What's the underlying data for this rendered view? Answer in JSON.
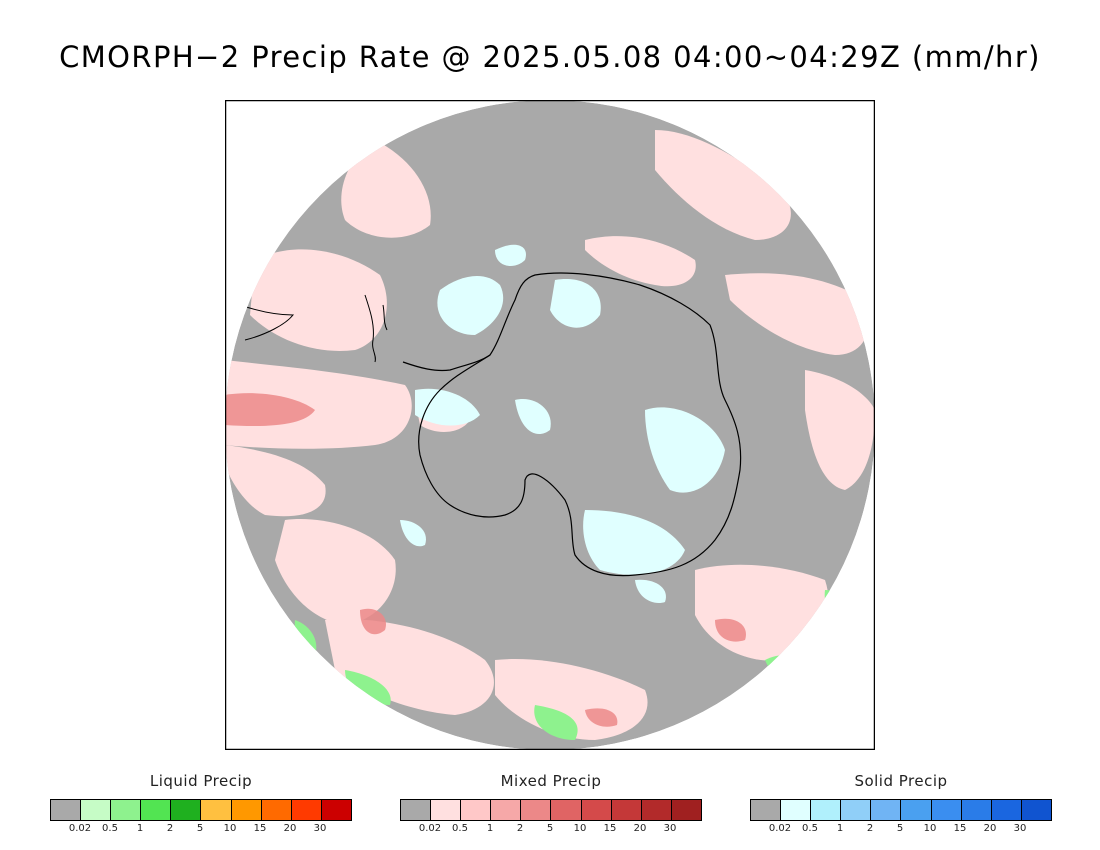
{
  "title": "CMORPH−2 Precip Rate @ 2025.05.08 04:00~04:29Z (mm/hr)",
  "map": {
    "projection": "south-polar-stereographic",
    "background_color": "#a9a9a9",
    "coastline_color": "#000000"
  },
  "legends": [
    {
      "id": "liquid",
      "title": "Liquid Precip",
      "colors": [
        "#a9a9a9",
        "#c6fcc6",
        "#8ef28e",
        "#52e452",
        "#1fb01f",
        "#ffc040",
        "#ff9800",
        "#ff6a00",
        "#ff3a00",
        "#cc0000"
      ],
      "ticks": [
        "0.02",
        "0.5",
        "1",
        "2",
        "5",
        "10",
        "15",
        "20",
        "30"
      ]
    },
    {
      "id": "mixed",
      "title": "Mixed Precip",
      "colors": [
        "#a9a9a9",
        "#ffe0e0",
        "#ffc8c8",
        "#f6a8a8",
        "#ec8888",
        "#e06464",
        "#d44a4a",
        "#c43838",
        "#b22a2a",
        "#a02020"
      ],
      "ticks": [
        "0.02",
        "0.5",
        "1",
        "2",
        "5",
        "10",
        "15",
        "20",
        "30"
      ]
    },
    {
      "id": "solid",
      "title": "Solid Precip",
      "colors": [
        "#a9a9a9",
        "#e0ffff",
        "#b0f0fc",
        "#90cff8",
        "#70b4f4",
        "#4aa0f0",
        "#3a8ef0",
        "#2a7ce8",
        "#1a66e0",
        "#1054d0"
      ],
      "ticks": [
        "0.02",
        "0.5",
        "1",
        "2",
        "5",
        "10",
        "15",
        "20",
        "30"
      ]
    }
  ]
}
